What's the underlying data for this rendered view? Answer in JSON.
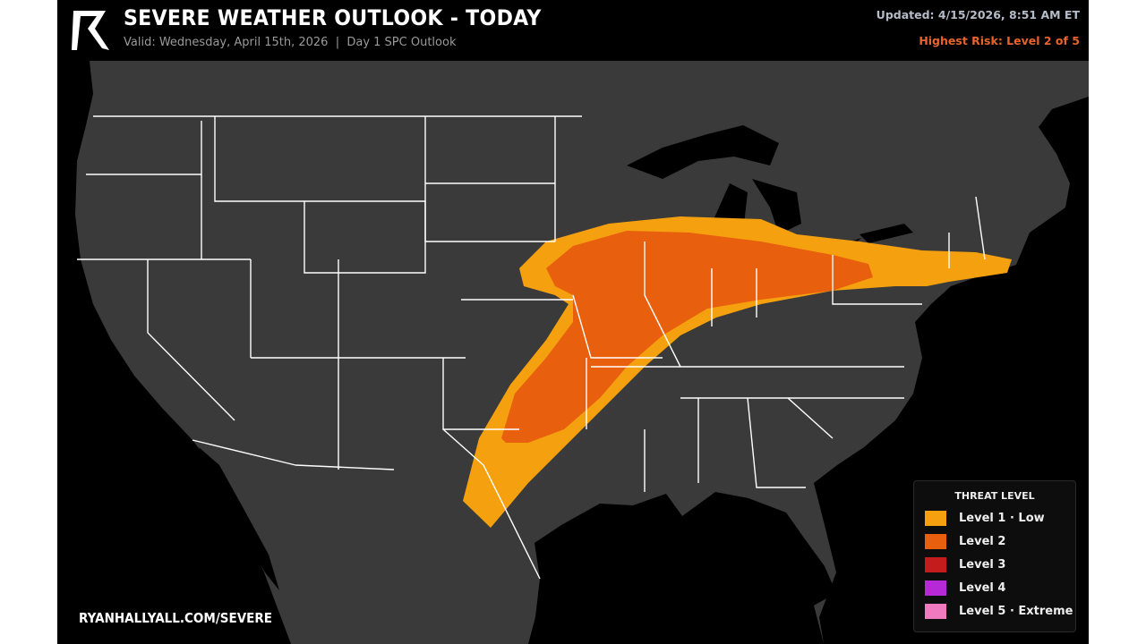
{
  "header": {
    "title": "SEVERE WEATHER OUTLOOK - TODAY",
    "subtitle": "Valid: Wednesday, April 15th, 2026  |  Day 1 SPC Outlook",
    "updated": "Updated: 4/15/2026, 8:51 AM ET",
    "highest_risk": "Highest Risk: Level 2 of 5",
    "logo": "R"
  },
  "legend": {
    "title": "THREAT LEVEL",
    "items": [
      {
        "label": "Level 1 · Low",
        "color": "#f5a00f"
      },
      {
        "label": "Level 2",
        "color": "#e8600e"
      },
      {
        "label": "Level 3",
        "color": "#c41c1c"
      },
      {
        "label": "Level 4",
        "color": "#b52ad6"
      },
      {
        "label": "Level 5 · Extreme",
        "color": "#f07ac0"
      }
    ]
  },
  "map": {
    "land_color": "#3a3a3a",
    "water_color": "#000000",
    "border_color": "#ffffff",
    "risk_areas": [
      "Level 1 · Low",
      "Level 2"
    ]
  },
  "footer": {
    "url": "RYANHALLYALL.COM/SEVERE"
  }
}
